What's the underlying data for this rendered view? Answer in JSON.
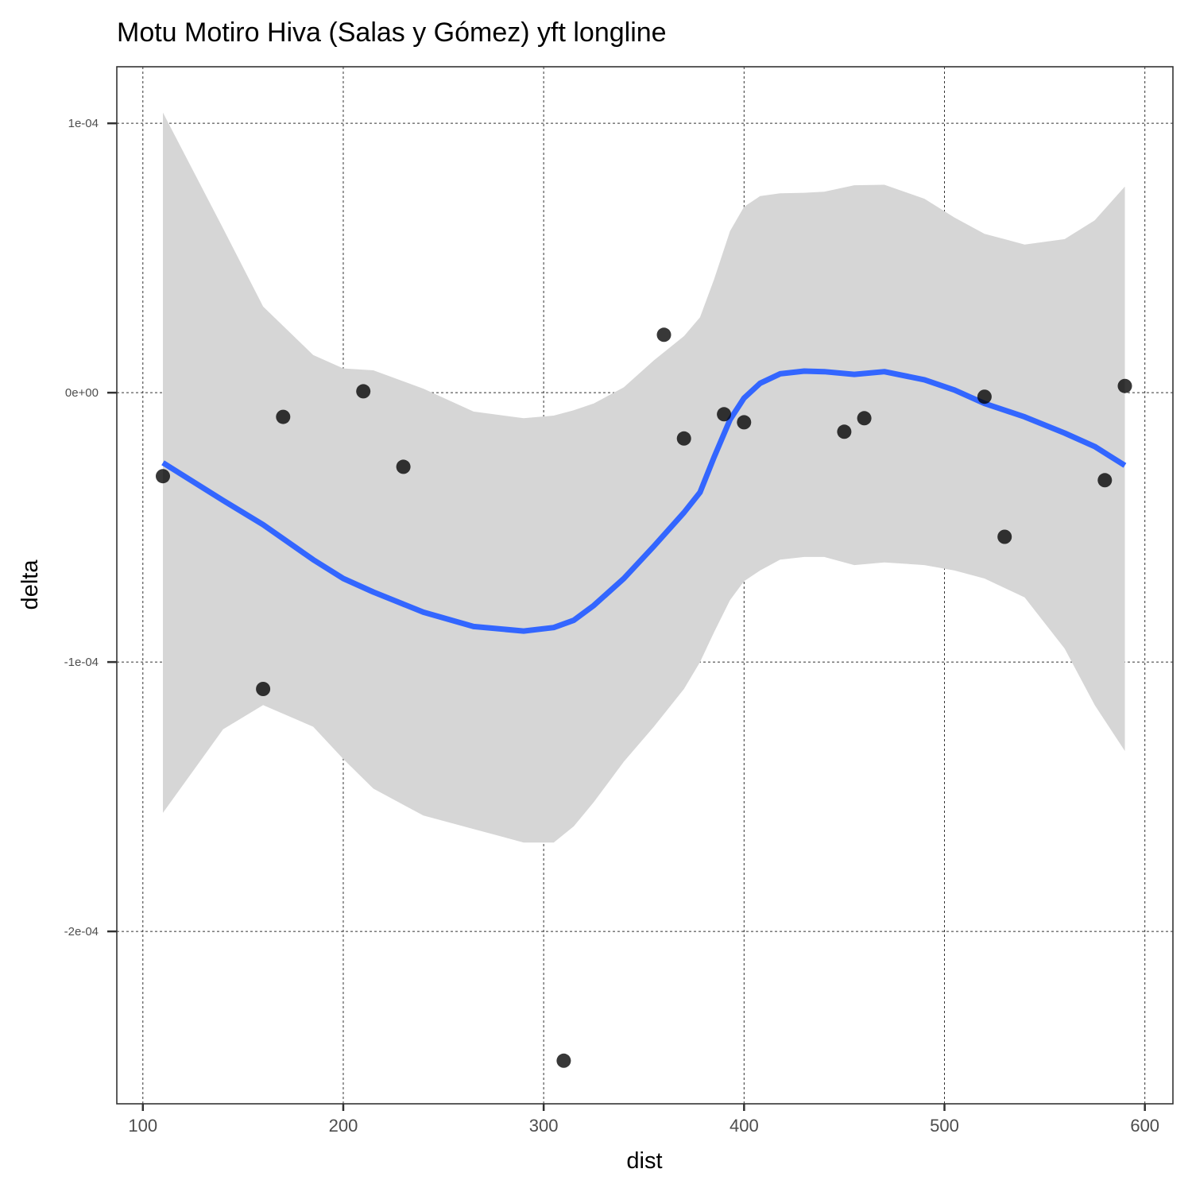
{
  "chart_data": {
    "type": "scatter",
    "title": "Motu Motiro Hiva (Salas y Gómez) yft longline",
    "xlabel": "dist",
    "ylabel": "delta",
    "xlim": [
      87,
      614
    ],
    "ylim": [
      -0.000264,
      0.000121
    ],
    "x_ticks": [
      100,
      200,
      300,
      400,
      500,
      600
    ],
    "x_tick_labels": [
      "100",
      "200",
      "300",
      "400",
      "500",
      "600"
    ],
    "y_ticks": [
      -0.0002,
      -0.0001,
      0,
      0.0001
    ],
    "y_tick_labels": [
      "-2e-04",
      "-1e-04",
      "0e+00",
      "1e-04"
    ],
    "grid": true,
    "colors": {
      "points": "#000000",
      "smooth": "#3366ff",
      "ribbon": "#d6d6d6"
    },
    "points": [
      {
        "x": 110,
        "y": -3.1e-05
      },
      {
        "x": 160,
        "y": -0.00011
      },
      {
        "x": 170,
        "y": -9e-06
      },
      {
        "x": 210,
        "y": 5e-07
      },
      {
        "x": 230,
        "y": -2.75e-05
      },
      {
        "x": 310,
        "y": -0.000248
      },
      {
        "x": 360,
        "y": 2.15e-05
      },
      {
        "x": 370,
        "y": -1.7e-05
      },
      {
        "x": 390,
        "y": -8e-06
      },
      {
        "x": 400,
        "y": -1.1e-05
      },
      {
        "x": 450,
        "y": -1.45e-05
      },
      {
        "x": 460,
        "y": -9.5e-06
      },
      {
        "x": 520,
        "y": -1.5e-06
      },
      {
        "x": 530,
        "y": -5.35e-05
      },
      {
        "x": 580,
        "y": -3.25e-05
      },
      {
        "x": 590,
        "y": 2.5e-06
      }
    ],
    "smooth": {
      "x": [
        110,
        140,
        160,
        185,
        200,
        215,
        240,
        265,
        290,
        305,
        315,
        325,
        340,
        355,
        370,
        378,
        385,
        393,
        400,
        408,
        418,
        430,
        440,
        455,
        470,
        490,
        505,
        520,
        540,
        560,
        575,
        590
      ],
      "fit": [
        -2.6e-05,
        -4e-05,
        -4.9e-05,
        -6.2e-05,
        -6.9e-05,
        -7.4e-05,
        -8.15e-05,
        -8.68e-05,
        -8.85e-05,
        -8.72e-05,
        -8.45e-05,
        -7.9e-05,
        -6.9e-05,
        -5.7e-05,
        -4.45e-05,
        -3.7e-05,
        -2.4e-05,
        -1e-05,
        -2e-06,
        3.5e-06,
        7e-06,
        8e-06,
        7.8e-06,
        6.8e-06,
        7.8e-06,
        4.8e-06,
        1e-06,
        -4e-06,
        -9e-06,
        -1.5e-05,
        -2e-05,
        -2.7e-05
      ],
      "upper": [
        0.000104,
        6.1e-05,
        3.2e-05,
        1.4e-05,
        9e-06,
        8.3e-06,
        1.5e-06,
        -7e-06,
        -9.5e-06,
        -8.5e-06,
        -6.5e-06,
        -4e-06,
        2e-06,
        1.2e-05,
        2.1e-05,
        2.8e-05,
        4.2e-05,
        6e-05,
        6.9e-05,
        7.3e-05,
        7.4e-05,
        7.42e-05,
        7.46e-05,
        7.7e-05,
        7.72e-05,
        7.2e-05,
        6.5e-05,
        5.9e-05,
        5.5e-05,
        5.7e-05,
        6.4e-05,
        7.65e-05
      ],
      "lower": [
        -0.000156,
        -0.000125,
        -0.000116,
        -0.000124,
        -0.000136,
        -0.000147,
        -0.000157,
        -0.000162,
        -0.000167,
        -0.000167,
        -0.000161,
        -0.000152,
        -0.000137,
        -0.000124,
        -0.00011,
        -0.0001,
        -8.9e-05,
        -7.7e-05,
        -7e-05,
        -6.6e-05,
        -6.2e-05,
        -6.1e-05,
        -6.1e-05,
        -6.4e-05,
        -6.3e-05,
        -6.4e-05,
        -6.6e-05,
        -6.9e-05,
        -7.6e-05,
        -9.5e-05,
        -0.000116,
        -0.000133
      ]
    }
  }
}
